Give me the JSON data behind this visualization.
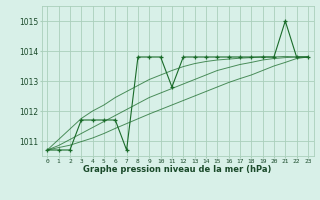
{
  "title": "Graphe pression niveau de la mer (hPa)",
  "bg_color": "#d8f0e8",
  "grid_color": "#aacfbb",
  "line_color": "#1a6b2a",
  "x_labels": [
    "0",
    "1",
    "2",
    "3",
    "4",
    "5",
    "6",
    "7",
    "8",
    "9",
    "10",
    "11",
    "12",
    "13",
    "14",
    "15",
    "16",
    "17",
    "18",
    "19",
    "20",
    "21",
    "22",
    "23"
  ],
  "ylim": [
    1010.5,
    1015.5
  ],
  "yticks": [
    1011,
    1012,
    1013,
    1014,
    1015
  ],
  "series": {
    "main": [
      1010.7,
      1010.7,
      1010.7,
      1011.7,
      1011.7,
      1011.7,
      1011.7,
      1010.7,
      1013.8,
      1013.8,
      1013.8,
      1012.8,
      1013.8,
      1013.8,
      1013.8,
      1013.8,
      1013.8,
      1013.8,
      1013.8,
      1013.8,
      1013.8,
      1015.0,
      1013.8,
      1013.8
    ],
    "trend1": [
      1010.7,
      1011.05,
      1011.4,
      1011.75,
      1012.0,
      1012.2,
      1012.45,
      1012.65,
      1012.85,
      1013.05,
      1013.2,
      1013.35,
      1013.48,
      1013.58,
      1013.65,
      1013.7,
      1013.73,
      1013.76,
      1013.78,
      1013.8,
      1013.8,
      1013.82,
      1013.8,
      1013.8
    ],
    "trend2": [
      1010.7,
      1010.85,
      1011.05,
      1011.25,
      1011.45,
      1011.65,
      1011.85,
      1012.05,
      1012.25,
      1012.45,
      1012.6,
      1012.75,
      1012.9,
      1013.05,
      1013.2,
      1013.35,
      1013.45,
      1013.55,
      1013.62,
      1013.7,
      1013.75,
      1013.78,
      1013.8,
      1013.8
    ],
    "trend3": [
      1010.7,
      1010.78,
      1010.86,
      1010.98,
      1011.1,
      1011.25,
      1011.42,
      1011.58,
      1011.74,
      1011.9,
      1012.05,
      1012.2,
      1012.35,
      1012.5,
      1012.65,
      1012.8,
      1012.95,
      1013.08,
      1013.2,
      1013.35,
      1013.5,
      1013.62,
      1013.75,
      1013.8
    ]
  }
}
